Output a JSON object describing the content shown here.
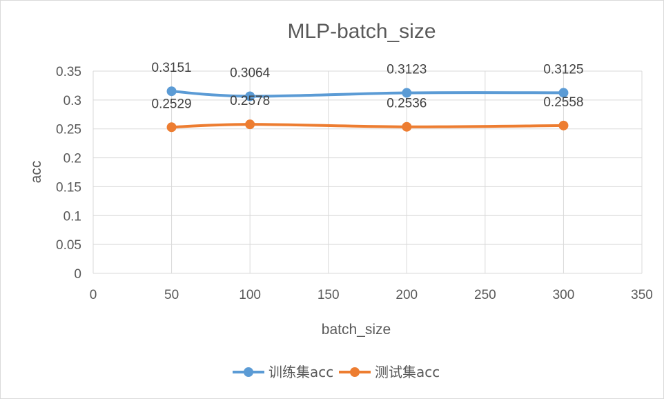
{
  "chart_data": {
    "type": "line",
    "title": "MLP-batch_size",
    "xlabel": "batch_size",
    "ylabel": "acc",
    "xlim": [
      0,
      350
    ],
    "ylim": [
      0,
      0.35
    ],
    "xticks": [
      "0",
      "50",
      "100",
      "150",
      "200",
      "250",
      "300",
      "350"
    ],
    "yticks": [
      "0",
      "0.05",
      "0.1",
      "0.15",
      "0.2",
      "0.25",
      "0.3",
      "0.35"
    ],
    "grid": true,
    "smooth": true,
    "legend_position": "bottom",
    "x": [
      50,
      100,
      200,
      300
    ],
    "series": [
      {
        "name": "训练集acc",
        "color": "#5B9BD5",
        "values": [
          0.3151,
          0.3064,
          0.3123,
          0.3125
        ],
        "labels": [
          "0.3151",
          "0.3064",
          "0.3123",
          "0.3125"
        ],
        "label_position": "above"
      },
      {
        "name": "测试集acc",
        "color": "#ED7D31",
        "values": [
          0.2529,
          0.2578,
          0.2536,
          0.2558
        ],
        "labels": [
          "0.2529",
          "0.2578",
          "0.2536",
          "0.2558"
        ],
        "label_position": "above"
      }
    ]
  }
}
